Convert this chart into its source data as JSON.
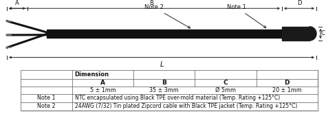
{
  "bg_color": "#ffffff",
  "cable_color": "#111111",
  "probe_color": "#1a1a1a",
  "wire_color": "#777777",
  "dim_color": "#222222",
  "text_color": "#111111",
  "table_line_color": "#555555",
  "table_data": {
    "dim_header": "Dimension",
    "col_headers": [
      "A",
      "B",
      "C",
      "D"
    ],
    "values": [
      "5 ± 1mm",
      "35 ± 3mm",
      "Ø 5mm",
      "20 ± 1mm"
    ],
    "note1_label": "Note 1",
    "note1_text": "NTC encapsulated using Black TPE over-mold material (Temp. Rating +125°C)",
    "note2_label": "Note 2",
    "note2_text": "24AWG (7/32) Tin plated Zipcord cable with Black TPE jacket (Temp. Rating +125°C)"
  }
}
